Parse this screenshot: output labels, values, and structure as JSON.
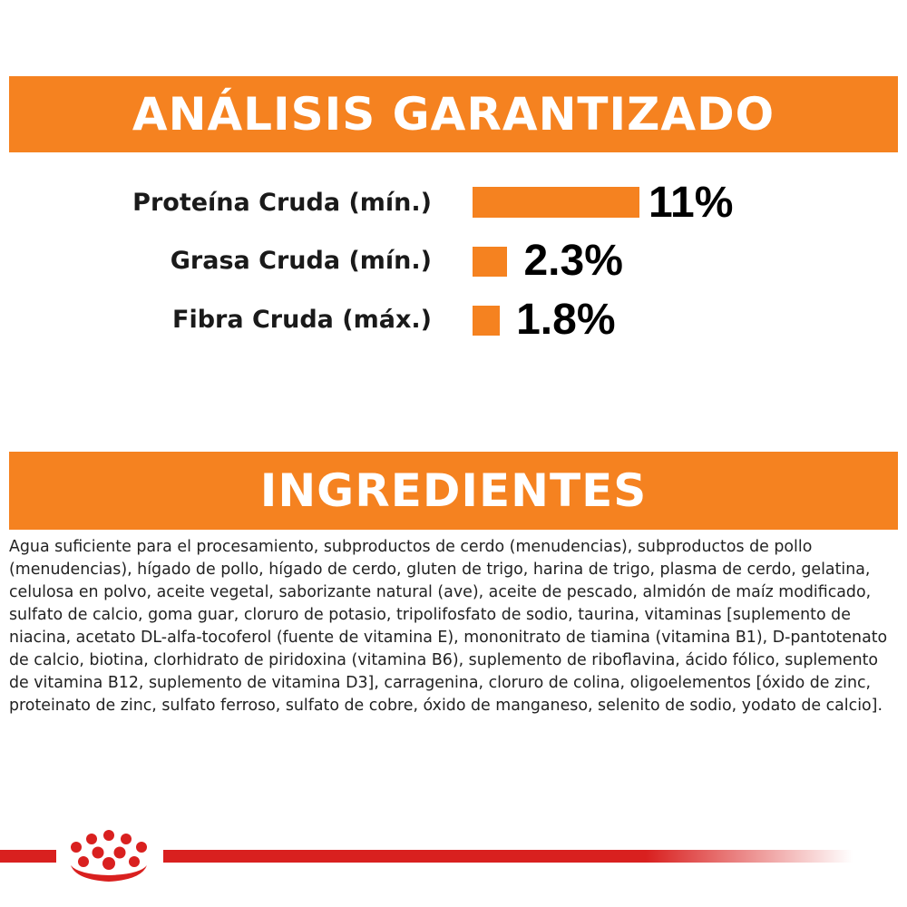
{
  "analysis": {
    "title": "ANÁLISIS GARANTIZADO",
    "rows": [
      {
        "label": "Proteína Cruda (mín.)",
        "value_text": "11%",
        "value": 11
      },
      {
        "label": "Grasa Cruda (mín.)",
        "value_text": "2.3%",
        "value": 2.3
      },
      {
        "label": "Fibra Cruda (máx.)",
        "value_text": "1.8%",
        "value": 1.8
      }
    ]
  },
  "ingredients": {
    "title": "INGREDIENTES",
    "text": "Agua suficiente para el procesamiento, subproductos de cerdo (menudencias), subproductos de pollo (menudencias), hígado de pollo, hígado de cerdo, gluten de trigo, harina de trigo, plasma de cerdo, gelatina, celulosa en polvo, aceite vegetal, saborizante natural (ave), aceite de pescado, almidón de maíz modificado, sulfato de calcio, goma guar, cloruro de potasio, tripolifosfato de sodio, taurina, vitaminas [suplemento de niacina, acetato DL-alfa-tocoferol (fuente de vitamina E), mononitrato de tiamina (vitamina B1), D-pantotenato de calcio, biotina, clorhidrato de piridoxina (vitamina B6), suplemento de riboflavina, ácido fólico, suplemento de vitamina B12, suplemento de vitamina D3], carragenina, cloruro de colina, oligoelementos [óxido de zinc, proteinato de zinc, sulfato ferroso, sulfato de cobre, óxido de manganeso, selenito de sodio, yodato de calcio]."
  },
  "colors": {
    "accent": "#f58220",
    "brand_red": "#d9201f"
  },
  "footer": {
    "logo_icon": "crown-logo-icon"
  }
}
